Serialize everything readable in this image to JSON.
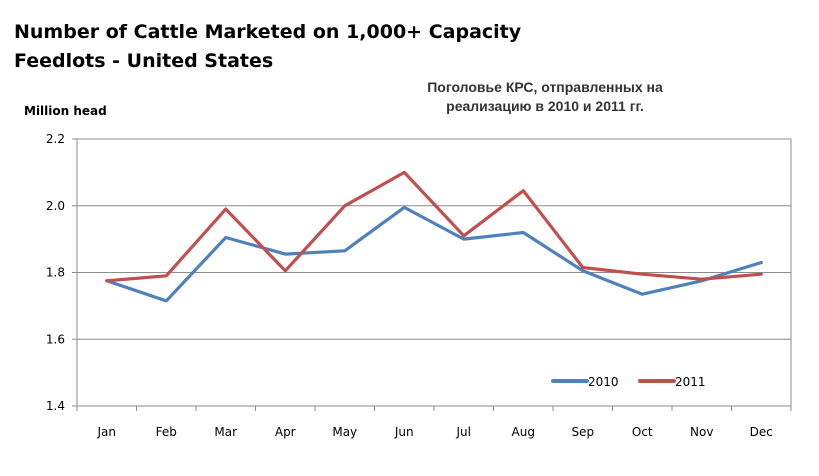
{
  "chart_data": {
    "type": "line",
    "title_lines": [
      "Number of Cattle Marketed on 1,000+ Capacity",
      "Feedlots - United States"
    ],
    "subtitle_lines": [
      "Поголовье КРС, отправленных на",
      "реализацию в 2010 и 2011 гг."
    ],
    "ylabel": "Million head",
    "xlabel": "",
    "categories": [
      "Jan",
      "Feb",
      "Mar",
      "Apr",
      "May",
      "Jun",
      "Jul",
      "Aug",
      "Sep",
      "Oct",
      "Nov",
      "Dec"
    ],
    "ylim": [
      1.4,
      2.2
    ],
    "yticks": [
      "1.4",
      "1.6",
      "1.8",
      "2.0",
      "2.2"
    ],
    "grid": true,
    "legend_position": "bottom-right",
    "series": [
      {
        "name": "2010",
        "color": "#4F81BD",
        "values": [
          1.775,
          1.715,
          1.905,
          1.855,
          1.865,
          1.995,
          1.9,
          1.92,
          1.805,
          1.735,
          1.775,
          1.83
        ]
      },
      {
        "name": "2011",
        "color": "#C0504D",
        "values": [
          1.775,
          1.79,
          1.99,
          1.805,
          2.0,
          2.1,
          1.91,
          2.045,
          1.815,
          1.795,
          1.78,
          1.795
        ]
      }
    ]
  }
}
